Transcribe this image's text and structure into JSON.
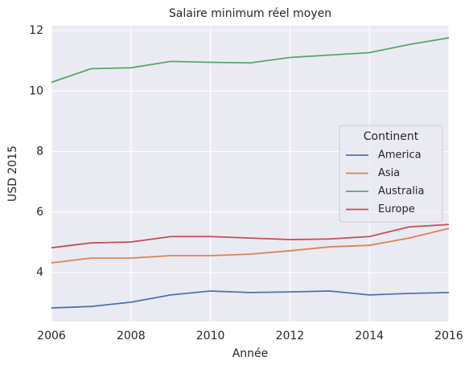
{
  "chart_data": {
    "type": "line",
    "title": "Salaire minimum réel moyen",
    "x_label": "Année",
    "y_label": "USD 2015",
    "x": [
      2006,
      2007,
      2008,
      2009,
      2010,
      2011,
      2012,
      2013,
      2014,
      2015,
      2016
    ],
    "series": [
      {
        "name": "America",
        "color": "#4c72b0",
        "values": [
          2.83,
          2.88,
          3.02,
          3.26,
          3.39,
          3.34,
          3.36,
          3.39,
          3.26,
          3.31,
          3.34
        ]
      },
      {
        "name": "Asia",
        "color": "#dd8452",
        "values": [
          4.32,
          4.48,
          4.48,
          4.56,
          4.56,
          4.61,
          4.72,
          4.85,
          4.9,
          5.14,
          5.46
        ]
      },
      {
        "name": "Australia",
        "color": "#55a868",
        "values": [
          10.29,
          10.74,
          10.77,
          10.98,
          10.95,
          10.93,
          11.11,
          11.19,
          11.27,
          11.54,
          11.76
        ]
      },
      {
        "name": "Europe",
        "color": "#c44e52",
        "values": [
          4.82,
          4.98,
          5.01,
          5.19,
          5.19,
          5.14,
          5.09,
          5.11,
          5.19,
          5.51,
          5.59
        ]
      }
    ],
    "legend_title": "Continent",
    "legend_position": "center right",
    "xlim": [
      2006,
      2016
    ],
    "ylim": [
      2.38,
      12.16
    ],
    "xticks": [
      2006,
      2008,
      2010,
      2012,
      2014,
      2016
    ],
    "yticks": [
      4,
      6,
      8,
      10,
      12
    ],
    "grid": true
  }
}
